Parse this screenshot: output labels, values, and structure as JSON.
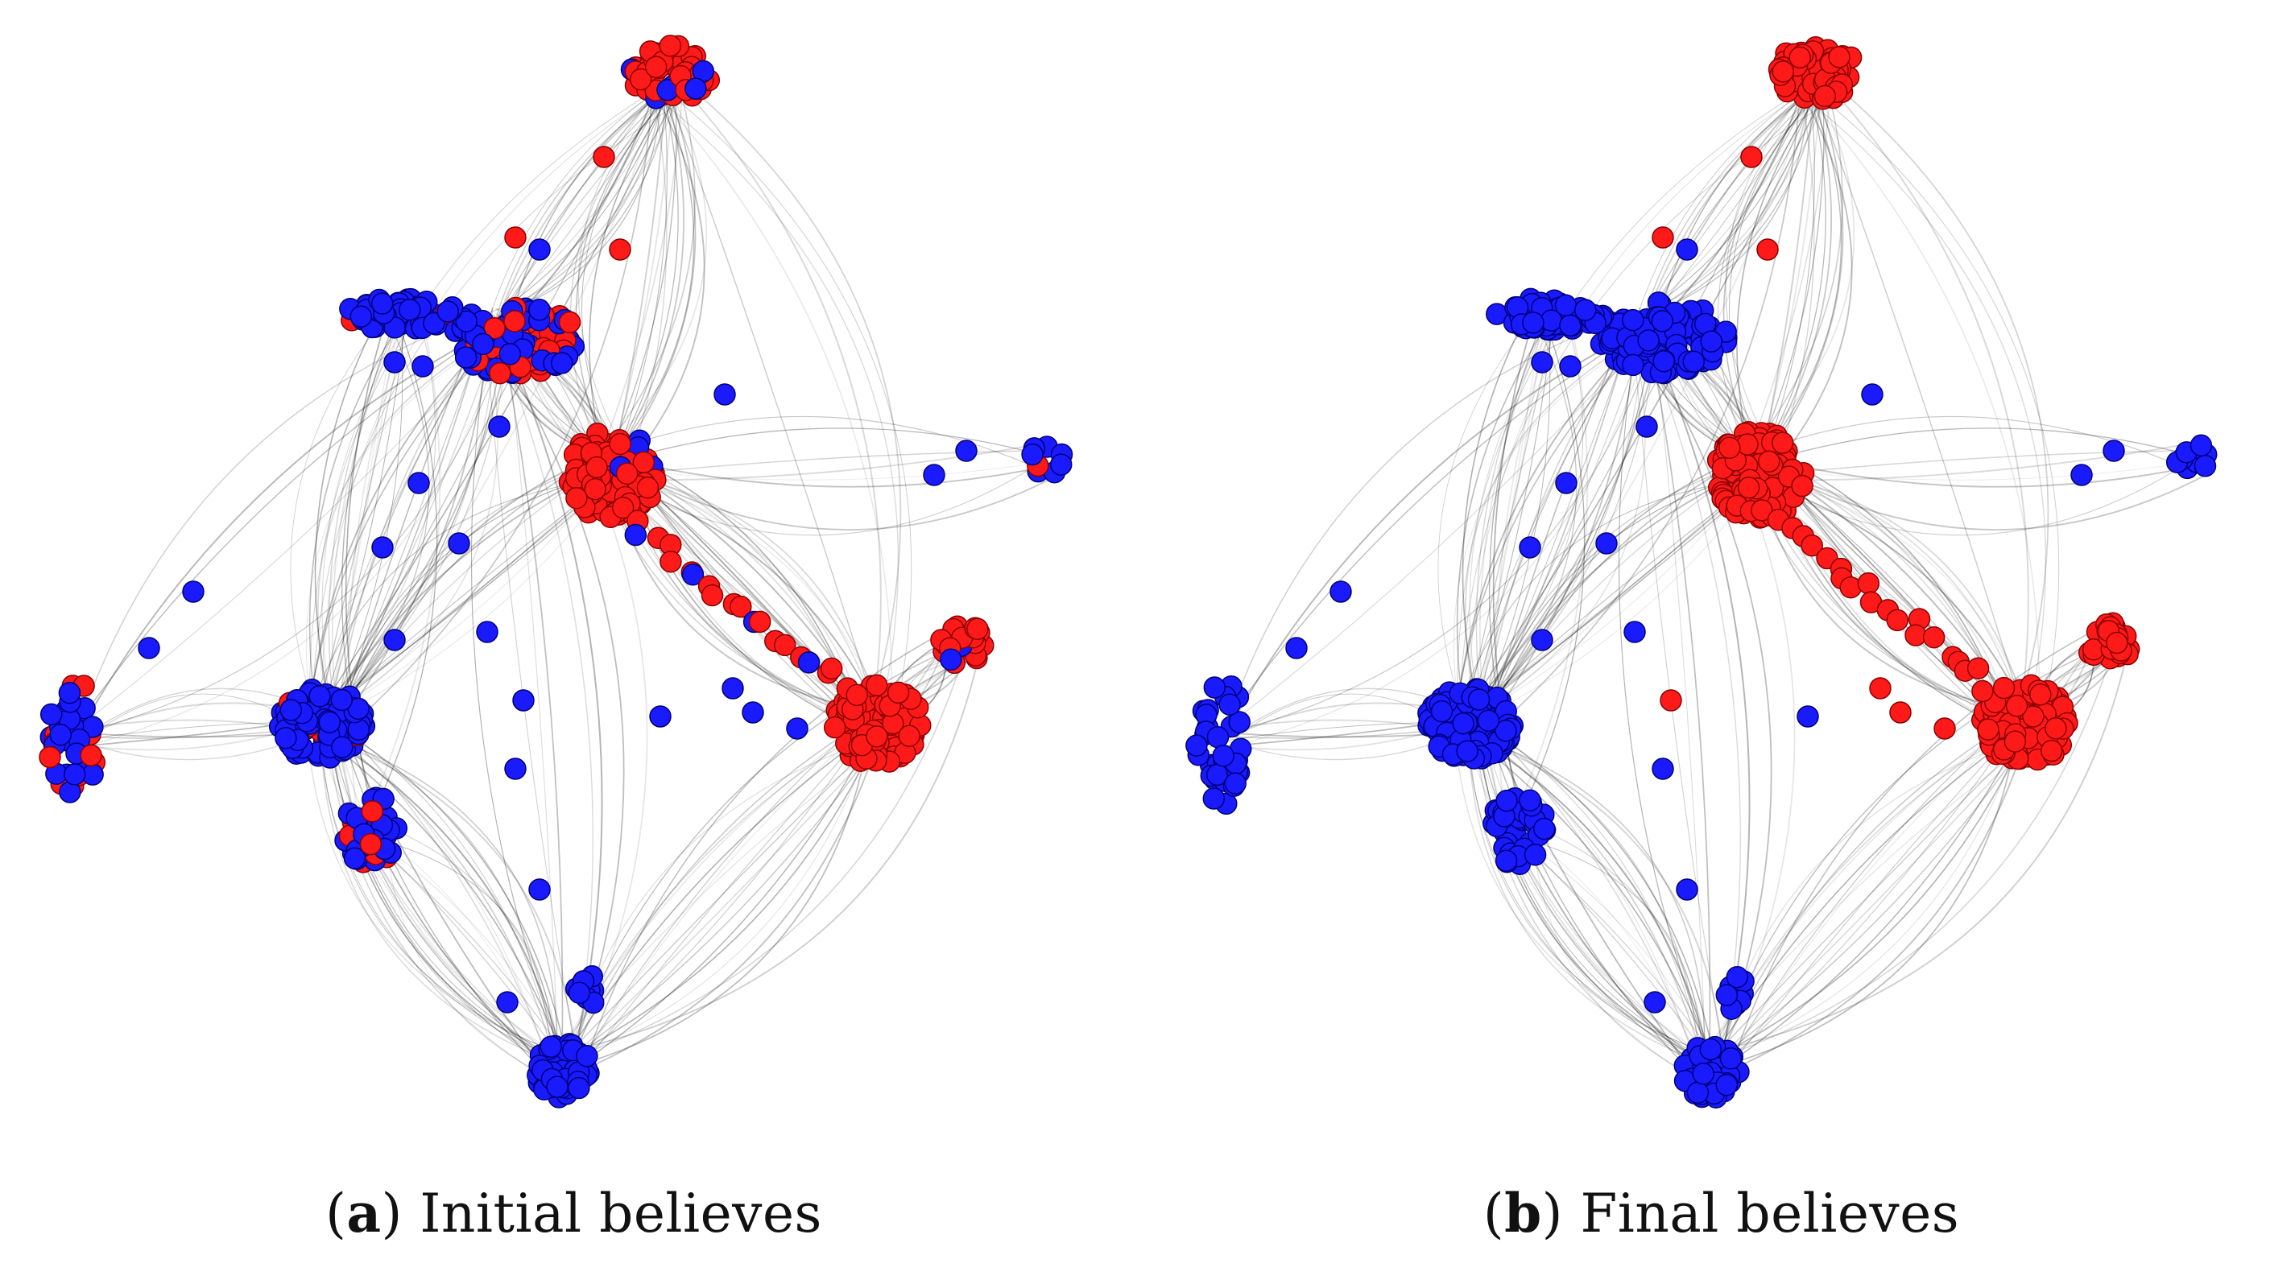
{
  "colors": {
    "belief_red": "#ff1a1a",
    "belief_blue": "#1a1aff",
    "node_stroke_red": "#8a0000",
    "node_stroke_blue": "#00007a",
    "edge": "#000000"
  },
  "panels": [
    {
      "id": "a",
      "caption_open": "(",
      "caption_letter": "a",
      "caption_rest": ") Initial believes"
    },
    {
      "id": "b",
      "caption_open": "(",
      "caption_letter": "b",
      "caption_rest": ") Final believes"
    }
  ]
}
